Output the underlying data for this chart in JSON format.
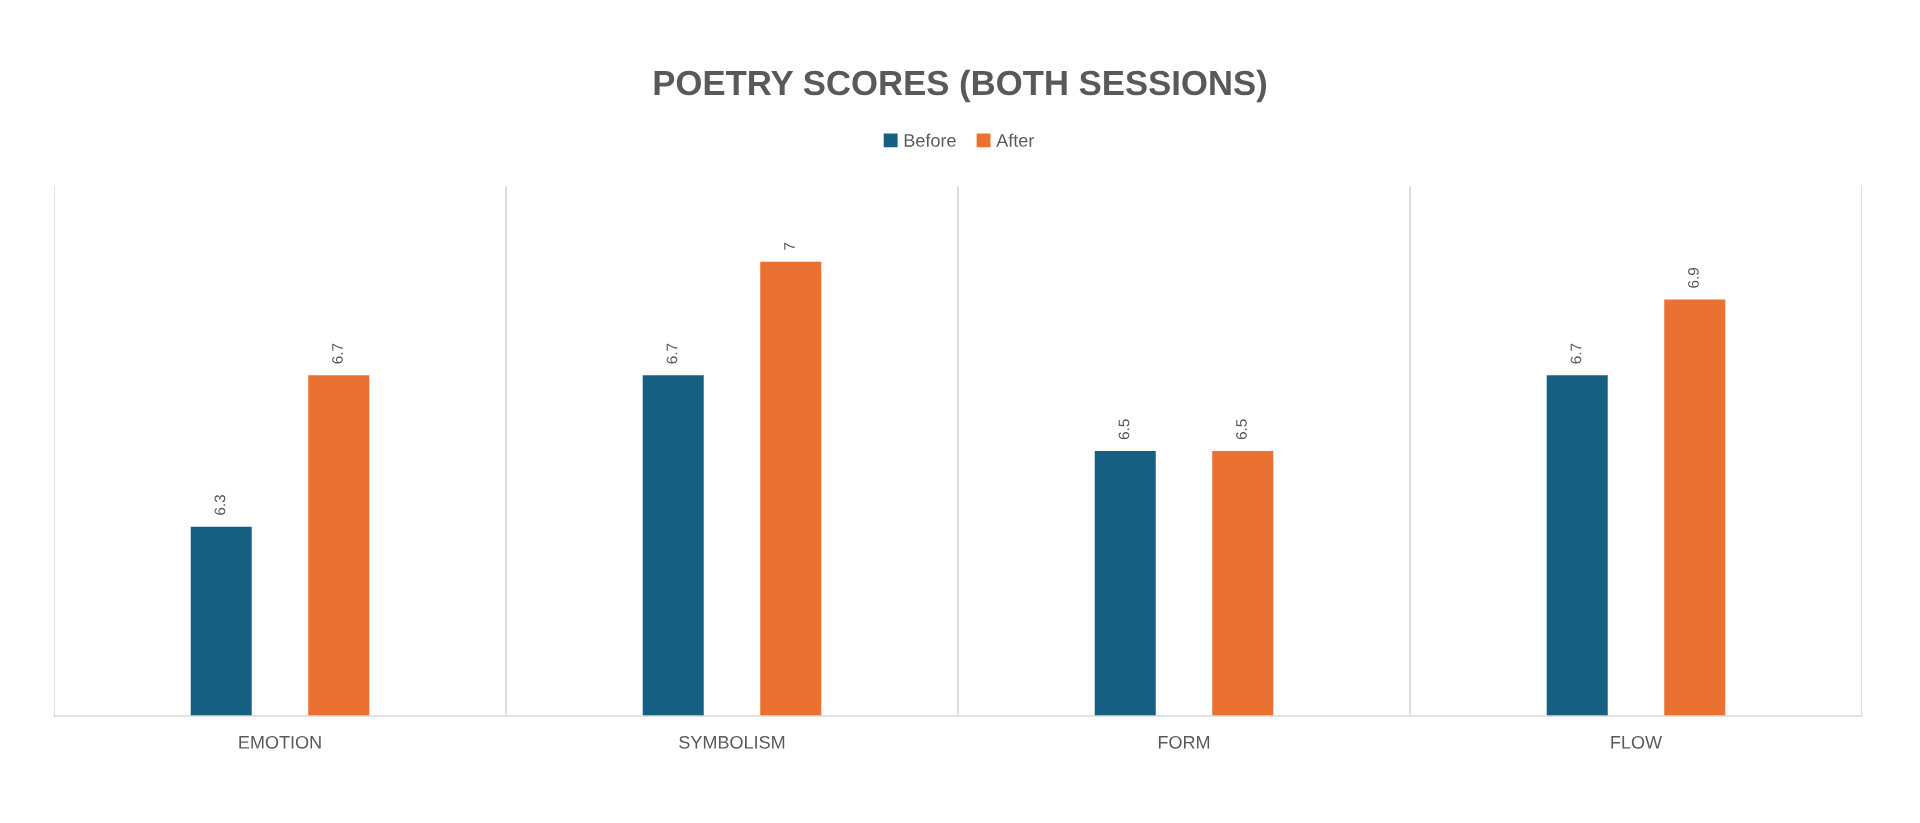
{
  "chart_data": {
    "type": "bar",
    "title": "POETRY SCORES (BOTH SESSIONS)",
    "categories": [
      "EMOTION",
      "SYMBOLISM",
      "FORM",
      "FLOW"
    ],
    "series": [
      {
        "name": "Before",
        "color": "#156082",
        "values": [
          6.3,
          6.7,
          6.5,
          6.7
        ]
      },
      {
        "name": "After",
        "color": "#e97132",
        "values": [
          6.7,
          7,
          6.5,
          6.9
        ]
      }
    ],
    "ylim": [
      5.8,
      7.2
    ],
    "tick_labels": "x",
    "data_labels": true,
    "grid": "x",
    "legend": "top"
  }
}
